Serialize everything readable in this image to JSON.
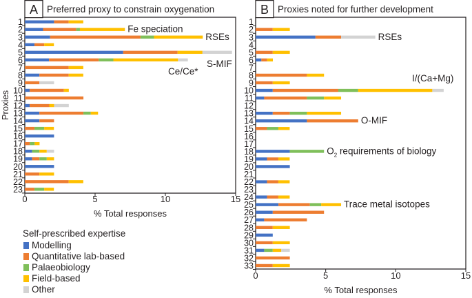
{
  "colors": {
    "Modelling": "#4472c4",
    "Quantitative lab-based": "#ed7d31",
    "Palaeobiology": "#7fbf5a",
    "Field-based": "#ffc000",
    "Other": "#d3d3d3"
  },
  "legend": {
    "title": "Self-prescribed expertise",
    "items": [
      "Modelling",
      "Quantitative lab-based",
      "Palaeobiology",
      "Field-based",
      "Other"
    ]
  },
  "chart_data": [
    {
      "type": "bar",
      "orientation": "horizontal-stacked",
      "panel_label": "A",
      "title": "Preferred proxy to constrain oxygenation",
      "xlabel": "% Total responses",
      "ylabel": "Proxies",
      "xlim": [
        0,
        15
      ],
      "xticks": [
        0,
        5,
        10,
        15
      ],
      "series_names": [
        "Modelling",
        "Quantitative lab-based",
        "Palaeobiology",
        "Field-based",
        "Other"
      ],
      "categories": [
        "1",
        "2",
        "3",
        "4",
        "5",
        "6",
        "7",
        "8",
        "9",
        "10",
        "11",
        "12",
        "13",
        "14",
        "15",
        "16",
        "17",
        "18",
        "19",
        "20",
        "21",
        "22",
        "23"
      ],
      "values": [
        [
          2.08,
          1.04,
          0,
          1.04,
          0
        ],
        [
          1.3,
          2.36,
          0.26,
          3.2,
          0
        ],
        [
          1.8,
          6.43,
          0.96,
          3.47,
          0
        ],
        [
          0.69,
          0.69,
          0,
          0.69,
          0
        ],
        [
          7.0,
          3.87,
          0,
          1.77,
          2.1
        ],
        [
          1.72,
          3.54,
          1.04,
          4.6,
          0.7
        ],
        [
          0,
          3.12,
          0,
          1.04,
          0
        ],
        [
          1.04,
          2.08,
          0,
          1.04,
          0
        ],
        [
          0,
          1.04,
          0,
          0,
          1.04
        ],
        [
          0.35,
          2.43,
          0,
          0.35,
          0
        ],
        [
          0,
          4.17,
          0,
          0,
          0
        ],
        [
          0.35,
          1.39,
          0,
          0.35,
          1.04
        ],
        [
          1.04,
          3.13,
          0.52,
          0.52,
          0
        ],
        [
          1.04,
          1.04,
          0,
          0,
          0
        ],
        [
          0,
          0.69,
          0.69,
          0.69,
          0
        ],
        [
          2.08,
          0,
          0,
          0,
          0
        ],
        [
          0,
          0.35,
          0.35,
          0.35,
          0
        ],
        [
          0.52,
          0,
          0.52,
          0.52,
          0.52
        ],
        [
          0.52,
          0.52,
          0.52,
          0.52,
          0
        ],
        [
          2.08,
          0,
          0,
          0,
          0
        ],
        [
          0,
          1.04,
          0,
          1.04,
          0
        ],
        [
          0,
          3.12,
          0,
          1.04,
          0
        ],
        [
          0,
          0.69,
          0.69,
          0.69,
          0
        ]
      ],
      "annotations": [
        {
          "row": "2",
          "text": "Fe speciation"
        },
        {
          "row": "3",
          "text": "RSEs"
        },
        {
          "row": "6",
          "text": "S-MIF"
        },
        {
          "row": "7",
          "text": "Ce/Ce*"
        }
      ]
    },
    {
      "type": "bar",
      "orientation": "horizontal-stacked",
      "panel_label": "B",
      "title": "Proxies noted for further development",
      "xlabel": "% Total responses",
      "xlim": [
        0,
        15
      ],
      "xticks": [
        0,
        5,
        10,
        15
      ],
      "series_names": [
        "Modelling",
        "Quantitative lab-based",
        "Palaeobiology",
        "Field-based",
        "Other"
      ],
      "categories": [
        "1",
        "2",
        "3",
        "4",
        "5",
        "6",
        "7",
        "8",
        "9",
        "10",
        "11",
        "12",
        "13",
        "14",
        "15",
        "16",
        "17",
        "18",
        "19",
        "20",
        "21",
        "22",
        "23",
        "24",
        "25",
        "26",
        "27",
        "28",
        "29",
        "30",
        "31",
        "32",
        "33"
      ],
      "values": [
        [
          0,
          0,
          0,
          0,
          0
        ],
        [
          0,
          1.22,
          0,
          1.22,
          0
        ],
        [
          4.27,
          1.83,
          0,
          0,
          2.44
        ],
        [
          0,
          0,
          0,
          0,
          0
        ],
        [
          0,
          1.22,
          0,
          1.22,
          0
        ],
        [
          0.41,
          0.41,
          0,
          0.41,
          0
        ],
        [
          0,
          0,
          0,
          0,
          0
        ],
        [
          0,
          3.66,
          0,
          1.22,
          0
        ],
        [
          0,
          1.22,
          0,
          1.22,
          0
        ],
        [
          1.22,
          4.68,
          1.42,
          5.29,
          0.81
        ],
        [
          0.61,
          3.05,
          1.22,
          1.22,
          0
        ],
        [
          0,
          0,
          0,
          0,
          0
        ],
        [
          1.22,
          1.22,
          1.22,
          2.44,
          0
        ],
        [
          3.66,
          3.66,
          0,
          0,
          0
        ],
        [
          0,
          0.81,
          0.81,
          0.81,
          0
        ],
        [
          0,
          0,
          0,
          0,
          0
        ],
        [
          0,
          0,
          0,
          0,
          0
        ],
        [
          2.44,
          0,
          2.44,
          0,
          0
        ],
        [
          0.81,
          0.81,
          0,
          0.81,
          0
        ],
        [
          2.44,
          0,
          0,
          0,
          0
        ],
        [
          0,
          0,
          0,
          0,
          0
        ],
        [
          0.81,
          0.81,
          0,
          0.81,
          0
        ],
        [
          0,
          0,
          0,
          0,
          0
        ],
        [
          0.81,
          0.81,
          0,
          0.81,
          0
        ],
        [
          1.63,
          2.24,
          0.81,
          1.42,
          0
        ],
        [
          1.22,
          3.66,
          0,
          0,
          0
        ],
        [
          0.61,
          3.05,
          0,
          0,
          0
        ],
        [
          0,
          1.22,
          0,
          1.22,
          0
        ],
        [
          1.22,
          0,
          0,
          0,
          0
        ],
        [
          0,
          1.22,
          0,
          1.22,
          0
        ],
        [
          0.61,
          0,
          0.61,
          0.61,
          0.61
        ],
        [
          0,
          2.44,
          0,
          0,
          0
        ],
        [
          0,
          1.22,
          0,
          1.22,
          0
        ]
      ],
      "annotations": [
        {
          "row": "3",
          "text": "RSEs"
        },
        {
          "row": "10",
          "text": "I/(Ca+Mg)"
        },
        {
          "row": "14",
          "text": "O-MIF"
        },
        {
          "row": "18",
          "text": "O",
          "sub": "2",
          "rest": " requirements of biology"
        },
        {
          "row": "25",
          "text": "Trace metal isotopes"
        }
      ]
    }
  ]
}
